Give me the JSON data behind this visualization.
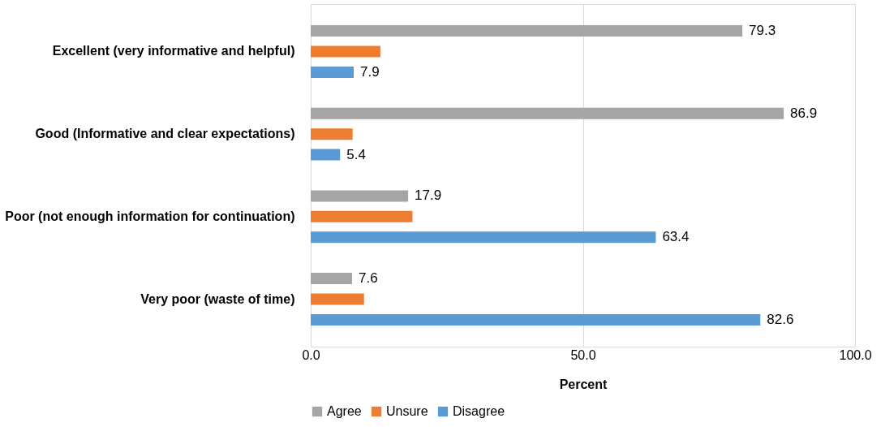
{
  "chart_data": {
    "type": "bar",
    "orientation": "horizontal",
    "xlabel": "Percent",
    "categories": [
      "Excellent (very informative and helpful)",
      "Good (Informative and clear expectations)",
      "Poor (not enough information for continuation)",
      "Very poor (waste of time)"
    ],
    "series": [
      {
        "name": "Agree",
        "color": "#a5a5a5",
        "values": [
          79.3,
          86.9,
          17.9,
          7.6
        ],
        "value_labels": [
          "79.3",
          "86.9",
          "17.9",
          "7.6"
        ]
      },
      {
        "name": "Unsure",
        "color": "#ed7d31",
        "values": [
          12.8,
          7.7,
          18.7,
          9.8
        ],
        "value_labels": [
          null,
          null,
          null,
          null
        ]
      },
      {
        "name": "Disagree",
        "color": "#5b9bd5",
        "values": [
          7.9,
          5.4,
          63.4,
          82.6
        ],
        "value_labels": [
          "7.9",
          "5.4",
          "63.4",
          "82.6"
        ]
      }
    ],
    "xlim": [
      0,
      100
    ],
    "xticks": [
      {
        "value": 0,
        "label": "0.0"
      },
      {
        "value": 50,
        "label": "50.0"
      },
      {
        "value": 100,
        "label": "100.0"
      }
    ],
    "grid": "x",
    "legend": "bottom left"
  }
}
